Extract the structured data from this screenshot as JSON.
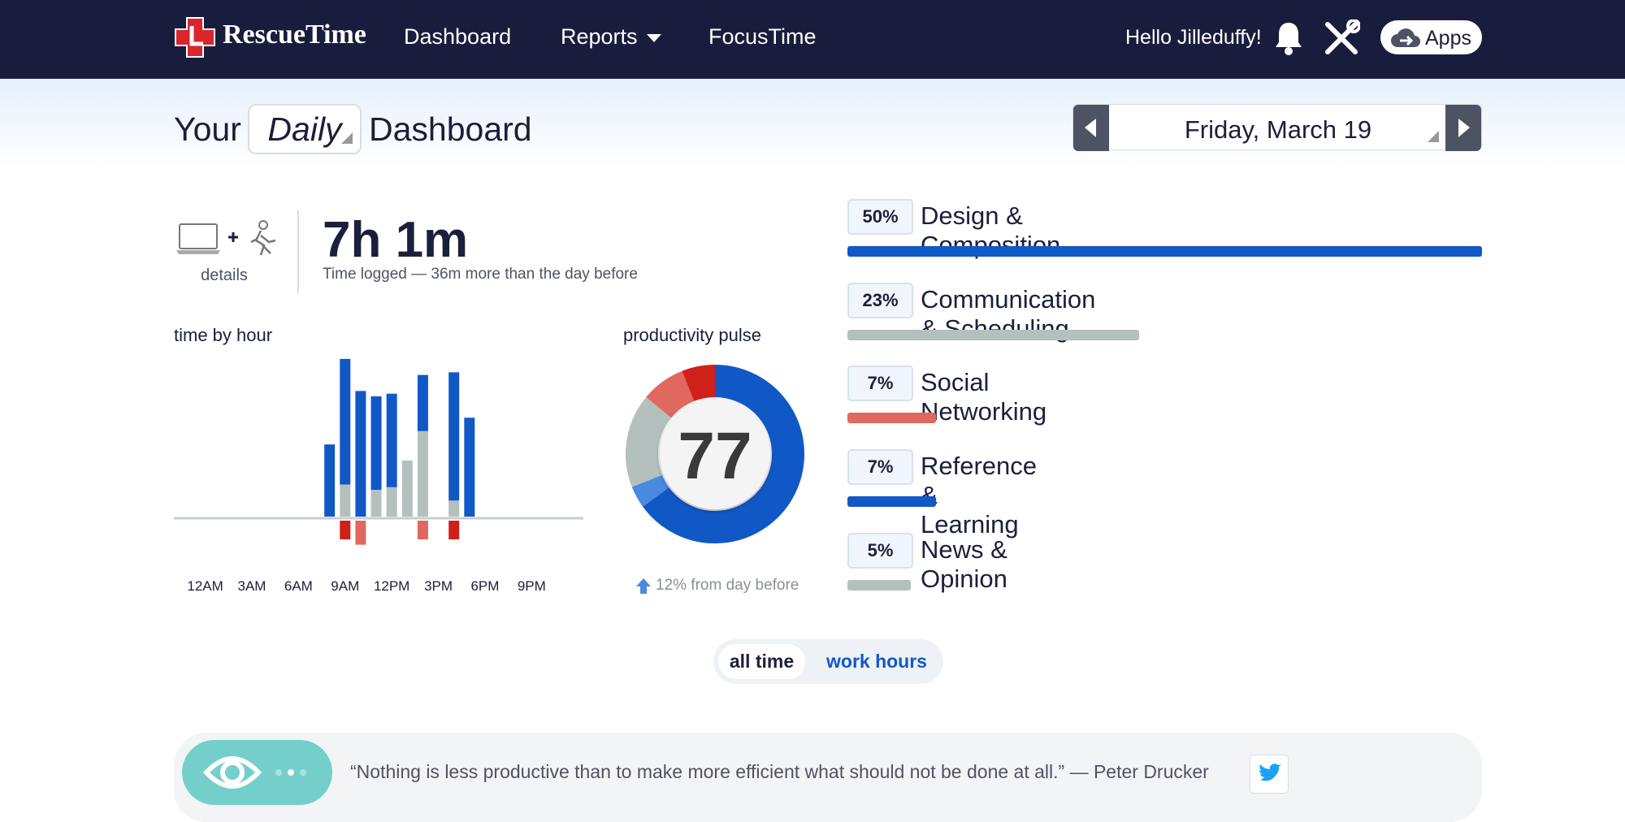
{
  "nav": {
    "logo": "RescueTime",
    "links": [
      "Dashboard",
      "Reports",
      "FocusTime"
    ],
    "greeting": "Hello Jilleduffy!",
    "apps": "Apps"
  },
  "header": {
    "prefix": "Your",
    "period": "Daily",
    "suffix": "Dashboard",
    "date": "Friday, March 19"
  },
  "summary": {
    "details": "details",
    "total": "7h 1m",
    "note": "Time logged — 36m more than the day before"
  },
  "time_by_hour": {
    "type": "bar",
    "title": "time by hour",
    "categories": [
      "12AM",
      null,
      null,
      "3AM",
      null,
      null,
      "6AM",
      null,
      null,
      "9AM",
      null,
      null,
      "12PM",
      null,
      null,
      "3PM",
      null,
      null,
      "6PM",
      null,
      null,
      "9PM",
      null,
      null
    ],
    "series": [
      {
        "color": "#b4c0bd",
        "values": [
          0,
          0,
          0,
          0,
          0,
          0,
          0,
          0,
          0,
          12,
          0,
          10,
          11,
          21,
          32,
          0,
          6,
          0,
          0,
          0,
          0,
          0,
          0,
          0
        ]
      },
      {
        "color": "#1158c7",
        "values": [
          0,
          0,
          0,
          0,
          0,
          0,
          0,
          0,
          27,
          47,
          47,
          35,
          35,
          0,
          21,
          0,
          48,
          37,
          0,
          0,
          0,
          0,
          0,
          0
        ]
      },
      {
        "color": "#e0685e",
        "values": [
          0,
          0,
          0,
          0,
          0,
          0,
          0,
          0,
          0,
          0,
          -9,
          0,
          0,
          0,
          -7,
          0,
          0,
          0,
          0,
          0,
          0,
          0,
          0,
          0
        ]
      },
      {
        "color": "#d0201a",
        "values": [
          0,
          0,
          0,
          0,
          0,
          0,
          0,
          0,
          0,
          -7,
          0,
          0,
          0,
          0,
          0,
          0,
          -7,
          0,
          0,
          0,
          0,
          0,
          0,
          0
        ]
      }
    ]
  },
  "pulse": {
    "type": "donut",
    "title": "productivity pulse",
    "score": 77,
    "values": [
      65,
      4,
      17,
      8,
      6
    ],
    "colors": [
      "#1158c7",
      "#4a89e0",
      "#b4c0bd",
      "#e0685e",
      "#d0201a"
    ],
    "change": "12% from day before"
  },
  "top_categories": {
    "type": "bar",
    "names": [
      "Design & Composition",
      "Communication & Scheduling",
      "Social Networking",
      "Reference & Learning",
      "News & Opinion"
    ],
    "values": [
      50,
      23,
      7,
      7,
      5
    ],
    "value_labels": [
      "50%",
      "23%",
      "7%",
      "7%",
      "5%"
    ],
    "colors": [
      "#1158c7",
      "#b4c0bd",
      "#e0685e",
      "#1158c7",
      "#b4c0bd"
    ]
  },
  "toggle": {
    "options": [
      "all time",
      "work hours"
    ]
  },
  "quote": {
    "text": "“Nothing is less productive than to make more efficient what should not be done at all.” — Peter Drucker"
  }
}
